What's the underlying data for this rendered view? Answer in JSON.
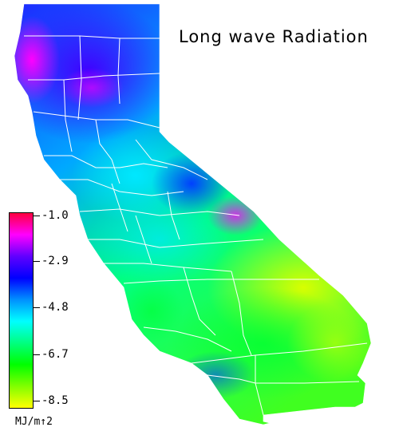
{
  "title": "Long wave Radiation",
  "legend": {
    "ticks": [
      "-1.0",
      "-2.9",
      "-4.8",
      "-6.7",
      "-8.5"
    ],
    "units": "MJ/m↑2",
    "color_stops": [
      "#ff0040",
      "#ff00ff",
      "#6000ff",
      "#0000ff",
      "#0090ff",
      "#00ffff",
      "#00ff80",
      "#00ff00",
      "#80ff00",
      "#ffff00"
    ]
  },
  "map": {
    "region": "California",
    "value_range": [
      -8.5,
      -1.0
    ],
    "colors": {
      "high": "#ff00ff",
      "upper_mid": "#3a1aff",
      "mid": "#00b0ff",
      "lower_mid": "#00ff40",
      "low": "#d8ff00",
      "county_lines": "#ffffff"
    }
  }
}
